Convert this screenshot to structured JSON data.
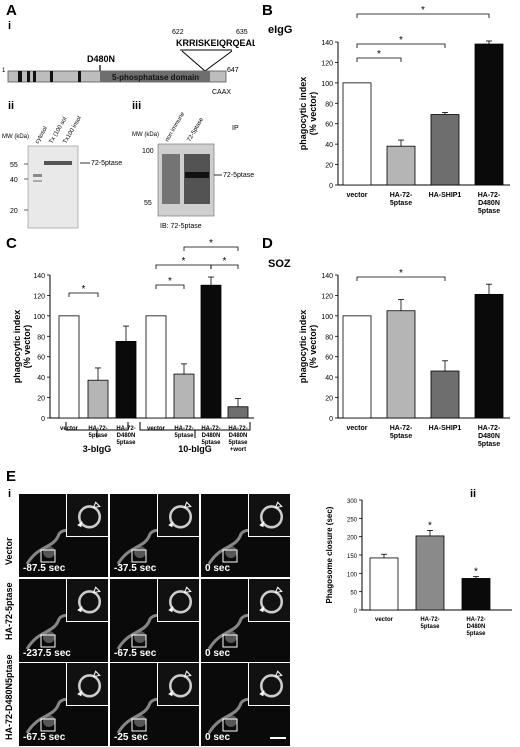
{
  "panel_letters": {
    "A": "A",
    "B": "B",
    "C": "C",
    "D": "D",
    "E": "E"
  },
  "panelA": {
    "sub_i": "i",
    "sub_ii": "ii",
    "sub_iii": "iii",
    "seq_start": "622",
    "seq_end": "635",
    "seq": "KRRISKEIQRQEAL",
    "mutation": "D480N",
    "domain_label": "5-phosphatase domain",
    "pos_start": "1",
    "pos_end": "647",
    "caax": "CAAX",
    "blot_ii": {
      "mw_label": "MW\n(kDa)",
      "lanes": [
        "cytosol",
        "Tx (100 sol",
        "Tx100 insol"
      ],
      "ticks": [
        "55",
        "40",
        "20"
      ],
      "band_label": "72-5ptase"
    },
    "blot_iii": {
      "mw_label": "MW\n(kDa)",
      "lanes": [
        "non immune",
        "72-5ptase"
      ],
      "ip": "IP",
      "ticks": [
        "100",
        "55"
      ],
      "band_label": "72-5ptase",
      "ib": "IB: 72-5ptase"
    }
  },
  "panelB": {
    "title": "eIgG"
  },
  "panelC": {
    "group1": "3-bIgG",
    "group2": "10-bIgG"
  },
  "panelD": {
    "title": "SOZ"
  },
  "panelE": {
    "sub_i": "i",
    "sub_ii": "ii",
    "rows": [
      {
        "label": "Vector",
        "times": [
          "-87.5 sec",
          "-37.5 sec",
          "0 sec"
        ]
      },
      {
        "label": "HA-72-5ptase",
        "times": [
          "-237.5 sec",
          "-67.5 sec",
          "0 sec"
        ]
      },
      {
        "label": "HA-72-D480N5ptase",
        "times": [
          "-67.5 sec",
          "-25 sec",
          "0 sec"
        ]
      }
    ]
  },
  "chart_data": [
    {
      "type": "bar",
      "id": "B",
      "title": "eIgG",
      "ylabel": "phagocytic index\n(% vector)",
      "ylim": [
        0,
        140
      ],
      "yticks": [
        0,
        20,
        40,
        60,
        80,
        100,
        120,
        140
      ],
      "categories": [
        "vector",
        "HA-72-\n5ptase",
        "HA-SHIP1",
        "HA-72-\nD480N\n5ptase"
      ],
      "values": [
        100,
        38,
        69,
        138
      ],
      "errors": [
        0,
        6,
        2,
        3
      ],
      "colors": [
        "#ffffff",
        "#b5b5b5",
        "#6e6e6e",
        "#0a0a0a"
      ]
    },
    {
      "type": "bar",
      "id": "C",
      "ylabel": "phagocytic index\n(% vector)",
      "ylim": [
        0,
        140
      ],
      "yticks": [
        0,
        20,
        40,
        60,
        80,
        100,
        120,
        140
      ],
      "categories": [
        "vector",
        "HA-72-\n5ptase",
        "HA-72-\nD480N\n5ptase",
        "vector",
        "HA-72-\n5ptase",
        "HA-72-\nD480N\n5ptase",
        "HA-72-\nD480N\n5ptase\n+wort"
      ],
      "values": [
        100,
        37,
        75,
        100,
        43,
        130,
        11
      ],
      "errors": [
        0,
        12,
        15,
        0,
        10,
        8,
        8
      ],
      "colors": [
        "#ffffff",
        "#b5b5b5",
        "#0a0a0a",
        "#ffffff",
        "#b5b5b5",
        "#0a0a0a",
        "#6e6e6e"
      ]
    },
    {
      "type": "bar",
      "id": "D",
      "title": "SOZ",
      "ylabel": "phagocytic index\n(% vector)",
      "ylim": [
        0,
        140
      ],
      "yticks": [
        0,
        20,
        40,
        60,
        80,
        100,
        120,
        140
      ],
      "categories": [
        "vector",
        "HA-72-\n5ptase",
        "HA-SHIP1",
        "HA-72-\nD480N\n5ptase"
      ],
      "values": [
        100,
        105,
        46,
        121
      ],
      "errors": [
        0,
        11,
        10,
        10
      ],
      "colors": [
        "#ffffff",
        "#b5b5b5",
        "#6e6e6e",
        "#0a0a0a"
      ]
    },
    {
      "type": "bar",
      "id": "Eii",
      "ylabel": "Phagosome closure (sec)",
      "ylim": [
        0,
        300
      ],
      "yticks": [
        0,
        50,
        100,
        150,
        200,
        250,
        300
      ],
      "categories": [
        "vector",
        "HA-72-\n5ptase",
        "HA-72-\nD480N\n5ptase"
      ],
      "values": [
        142,
        202,
        86
      ],
      "errors": [
        10,
        15,
        5
      ],
      "colors": [
        "#ffffff",
        "#8a8a8a",
        "#0a0a0a"
      ]
    }
  ]
}
